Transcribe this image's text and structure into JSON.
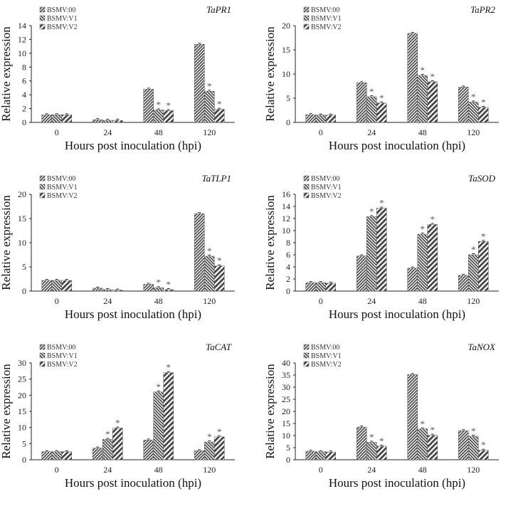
{
  "chart_data": [
    {
      "type": "bar",
      "title": "TaPR1",
      "xlabel": "Hours post inoculation (hpi)",
      "ylabel": "Relative expression",
      "ylim": [
        0,
        14
      ],
      "yticks": [
        0,
        2,
        4,
        6,
        8,
        10,
        12,
        14
      ],
      "categories": [
        "0",
        "24",
        "48",
        "120"
      ],
      "legend": [
        "BSMV:00",
        "BSMV:V1",
        "BSMV:V2"
      ],
      "legend_position": "top-left",
      "series": [
        {
          "name": "BSMV:00",
          "values": [
            1.1,
            0.4,
            4.8,
            11.3
          ]
        },
        {
          "name": "BSMV:V1",
          "values": [
            1.1,
            0.3,
            1.8,
            4.5
          ]
        },
        {
          "name": "BSMV:V2",
          "values": [
            1.1,
            0.3,
            1.7,
            1.9
          ]
        }
      ],
      "significant": [
        [
          false,
          false,
          true,
          true
        ],
        [
          false,
          false,
          true,
          true
        ]
      ]
    },
    {
      "type": "bar",
      "title": "TaPR2",
      "xlabel": "Hours post inoculation (hpi)",
      "ylabel": "Relative expression",
      "ylim": [
        0,
        20
      ],
      "yticks": [
        0,
        5,
        10,
        15,
        20
      ],
      "categories": [
        "0",
        "24",
        "48",
        "120"
      ],
      "legend": [
        "BSMV:00",
        "BSMV:V1",
        "BSMV:V2"
      ],
      "legend_position": "top-left",
      "series": [
        {
          "name": "BSMV:00",
          "values": [
            1.6,
            8.2,
            18.4,
            7.3
          ]
        },
        {
          "name": "BSMV:V1",
          "values": [
            1.5,
            5.3,
            9.7,
            4.2
          ]
        },
        {
          "name": "BSMV:V2",
          "values": [
            1.5,
            4.0,
            8.4,
            3.1
          ]
        }
      ],
      "significant": [
        [
          false,
          true,
          true,
          true
        ],
        [
          false,
          true,
          true,
          true
        ]
      ]
    },
    {
      "type": "bar",
      "title": "TaTLP1",
      "xlabel": "Hours post inoculation (hpi)",
      "ylabel": "Relative expression",
      "ylim": [
        0,
        20
      ],
      "yticks": [
        0,
        5,
        10,
        15,
        20
      ],
      "categories": [
        "0",
        "24",
        "48",
        "120"
      ],
      "legend": [
        "BSMV:00",
        "BSMV:V1",
        "BSMV:V2"
      ],
      "legend_position": "top-left",
      "series": [
        {
          "name": "BSMV:00",
          "values": [
            2.2,
            0.6,
            1.4,
            16.0
          ]
        },
        {
          "name": "BSMV:V1",
          "values": [
            2.2,
            0.3,
            0.7,
            7.2
          ]
        },
        {
          "name": "BSMV:V2",
          "values": [
            2.2,
            0.2,
            0.3,
            5.2
          ]
        }
      ],
      "significant": [
        [
          false,
          false,
          true,
          true
        ],
        [
          false,
          false,
          true,
          true
        ]
      ]
    },
    {
      "type": "bar",
      "title": "TaSOD",
      "xlabel": "Hours post inoculation (hpi)",
      "ylabel": "Relative expression",
      "ylim": [
        0,
        16
      ],
      "yticks": [
        0,
        2,
        4,
        6,
        8,
        10,
        12,
        14,
        16
      ],
      "categories": [
        "0",
        "24",
        "48",
        "120"
      ],
      "legend": [
        "BSMV:00",
        "BSMV:V1",
        "BSMV:V2"
      ],
      "legend_position": "top-left",
      "series": [
        {
          "name": "BSMV:00",
          "values": [
            1.4,
            5.8,
            3.8,
            2.6
          ]
        },
        {
          "name": "BSMV:V1",
          "values": [
            1.4,
            12.3,
            9.4,
            6.0
          ]
        },
        {
          "name": "BSMV:V2",
          "values": [
            1.3,
            13.7,
            11.0,
            8.2
          ]
        }
      ],
      "significant": [
        [
          false,
          true,
          true,
          true
        ],
        [
          false,
          true,
          true,
          true
        ]
      ]
    },
    {
      "type": "bar",
      "title": "TaCAT",
      "xlabel": "Hours post inoculation (hpi)",
      "ylabel": "Relative expression",
      "ylim": [
        0,
        30
      ],
      "yticks": [
        0,
        5,
        10,
        15,
        20,
        25,
        30
      ],
      "categories": [
        "0",
        "24",
        "48",
        "120"
      ],
      "legend": [
        "BSMV:00",
        "BSMV:V1",
        "BSMV:V2"
      ],
      "legend_position": "top-left",
      "series": [
        {
          "name": "BSMV:00",
          "values": [
            2.5,
            3.6,
            6.1,
            2.8
          ]
        },
        {
          "name": "BSMV:V1",
          "values": [
            2.5,
            6.3,
            21.0,
            5.5
          ]
        },
        {
          "name": "BSMV:V2",
          "values": [
            2.5,
            9.8,
            27.0,
            7.1
          ]
        }
      ],
      "significant": [
        [
          false,
          true,
          true,
          true
        ],
        [
          false,
          true,
          true,
          true
        ]
      ]
    },
    {
      "type": "bar",
      "title": "TaNOX",
      "xlabel": "Hours post inoculation (hpi)",
      "ylabel": "Relative expression",
      "ylim": [
        0,
        40
      ],
      "yticks": [
        0,
        5,
        10,
        15,
        20,
        25,
        30,
        35,
        40
      ],
      "categories": [
        "0",
        "24",
        "48",
        "120"
      ],
      "legend": [
        "BSMV:00",
        "BSMV:V1",
        "BSMV:V2"
      ],
      "legend_position": "top-left",
      "series": [
        {
          "name": "BSMV:00",
          "values": [
            3.5,
            13.5,
            35.2,
            12.0
          ]
        },
        {
          "name": "BSMV:V1",
          "values": [
            3.3,
            7.2,
            12.7,
            9.7
          ]
        },
        {
          "name": "BSMV:V2",
          "values": [
            3.2,
            5.6,
            10.1,
            3.9
          ]
        }
      ],
      "significant": [
        [
          false,
          true,
          true,
          true
        ],
        [
          false,
          true,
          true,
          true
        ]
      ]
    }
  ],
  "significance_mark": "*",
  "colors": {
    "bar_dark": "#444444",
    "bar_light": "#ffffff",
    "axis": "#222222"
  }
}
